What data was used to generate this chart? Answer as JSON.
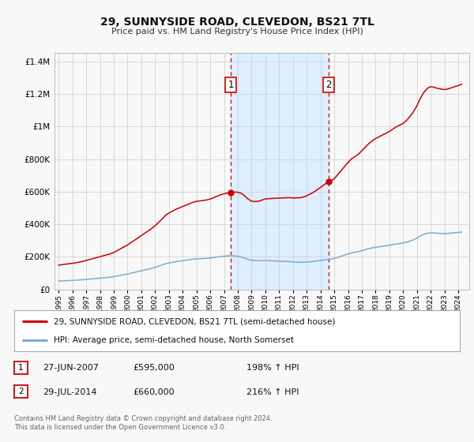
{
  "title": "29, SUNNYSIDE ROAD, CLEVEDON, BS21 7TL",
  "subtitle": "Price paid vs. HM Land Registry's House Price Index (HPI)",
  "legend_label_red": "29, SUNNYSIDE ROAD, CLEVEDON, BS21 7TL (semi-detached house)",
  "legend_label_blue": "HPI: Average price, semi-detached house, North Somerset",
  "footer": "Contains HM Land Registry data © Crown copyright and database right 2024.\nThis data is licensed under the Open Government Licence v3.0.",
  "transaction1_date": "27-JUN-2007",
  "transaction1_price": "£595,000",
  "transaction1_hpi": "198% ↑ HPI",
  "transaction2_date": "29-JUL-2014",
  "transaction2_price": "£660,000",
  "transaction2_hpi": "216% ↑ HPI",
  "sale1_x": 2007.49,
  "sale1_price": 595000,
  "sale2_x": 2014.58,
  "sale2_price": 660000,
  "ylim": [
    0,
    1450000
  ],
  "xlim_start": 1994.7,
  "xlim_end": 2024.8,
  "red_color": "#cc0000",
  "blue_color": "#7aadcf",
  "shade_color": "#ddeeff",
  "background_color": "#f8f8f8",
  "grid_color": "#cccccc",
  "hpi_years": [
    1995.0,
    1995.25,
    1995.5,
    1995.75,
    1996.0,
    1996.25,
    1996.5,
    1996.75,
    1997.0,
    1997.25,
    1997.5,
    1997.75,
    1998.0,
    1998.25,
    1998.5,
    1998.75,
    1999.0,
    1999.25,
    1999.5,
    1999.75,
    2000.0,
    2000.25,
    2000.5,
    2000.75,
    2001.0,
    2001.25,
    2001.5,
    2001.75,
    2002.0,
    2002.25,
    2002.5,
    2002.75,
    2003.0,
    2003.25,
    2003.5,
    2003.75,
    2004.0,
    2004.25,
    2004.5,
    2004.75,
    2005.0,
    2005.25,
    2005.5,
    2005.75,
    2006.0,
    2006.25,
    2006.5,
    2006.75,
    2007.0,
    2007.25,
    2007.5,
    2007.75,
    2008.0,
    2008.25,
    2008.5,
    2008.75,
    2009.0,
    2009.25,
    2009.5,
    2009.75,
    2010.0,
    2010.25,
    2010.5,
    2010.75,
    2011.0,
    2011.25,
    2011.5,
    2011.75,
    2012.0,
    2012.25,
    2012.5,
    2012.75,
    2013.0,
    2013.25,
    2013.5,
    2013.75,
    2014.0,
    2014.25,
    2014.5,
    2014.75,
    2015.0,
    2015.25,
    2015.5,
    2015.75,
    2016.0,
    2016.25,
    2016.5,
    2016.75,
    2017.0,
    2017.25,
    2017.5,
    2017.75,
    2018.0,
    2018.25,
    2018.5,
    2018.75,
    2019.0,
    2019.25,
    2019.5,
    2019.75,
    2020.0,
    2020.25,
    2020.5,
    2020.75,
    2021.0,
    2021.25,
    2021.5,
    2021.75,
    2022.0,
    2022.25,
    2022.5,
    2022.75,
    2023.0,
    2023.25,
    2023.5,
    2023.75,
    2024.0,
    2024.25
  ],
  "hpi_prices": [
    52000,
    53000,
    54000,
    55000,
    56000,
    57000,
    58500,
    60000,
    62000,
    64000,
    66000,
    68000,
    70000,
    72000,
    74000,
    76000,
    79000,
    83000,
    87000,
    91000,
    95000,
    100000,
    105000,
    110000,
    115000,
    120000,
    125000,
    130000,
    136000,
    143000,
    150000,
    158000,
    163000,
    167000,
    171000,
    174000,
    177000,
    180000,
    183000,
    186000,
    188000,
    189000,
    190000,
    191000,
    193000,
    196000,
    199000,
    202000,
    204000,
    206000,
    207000,
    206000,
    204000,
    200000,
    193000,
    185000,
    179000,
    177000,
    176000,
    177000,
    178000,
    177000,
    176000,
    175000,
    174000,
    173000,
    172000,
    171000,
    169000,
    168000,
    167000,
    167000,
    168000,
    170000,
    172000,
    175000,
    178000,
    181000,
    184000,
    186000,
    190000,
    197000,
    204000,
    211000,
    218000,
    224000,
    228000,
    232000,
    238000,
    244000,
    250000,
    255000,
    259000,
    262000,
    265000,
    268000,
    271000,
    275000,
    279000,
    282000,
    285000,
    290000,
    297000,
    305000,
    315000,
    328000,
    338000,
    345000,
    348000,
    347000,
    345000,
    344000,
    343000,
    344000,
    346000,
    348000,
    350000,
    352000
  ]
}
